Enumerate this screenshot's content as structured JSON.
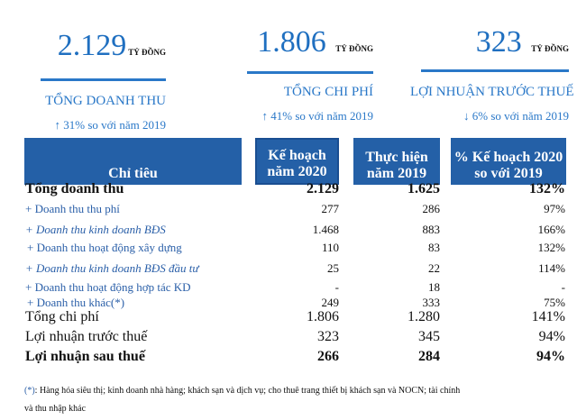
{
  "kpis": [
    {
      "value": "2.129",
      "unit": "TỶ ĐỒNG",
      "label": "TỔNG DOANH THU",
      "arrow": "↑",
      "change": "31% so với năm 2019"
    },
    {
      "value": "1.806",
      "unit": "TỶ ĐỒNG",
      "label": "TỔNG CHI PHÍ",
      "arrow": "↑",
      "change": "41% so với năm 2019"
    },
    {
      "value": "323",
      "unit": "TỶ ĐỒNG",
      "label": "LỢI NHUẬN TRƯỚC THUẾ",
      "arrow": "↓",
      "change": "6% so với năm 2019"
    }
  ],
  "table": {
    "headers": [
      "Chỉ tiêu",
      "Kế hoạch năm 2020",
      "Thực hiện năm 2019",
      "% Kế hoạch 2020 so với 2019"
    ],
    "header_lines": [
      [
        "Chỉ tiêu"
      ],
      [
        "Kế hoạch",
        "năm 2020"
      ],
      [
        "Thực hiện",
        "năm 2019"
      ],
      [
        "% Kế hoạch 2020",
        "so với 2019"
      ]
    ],
    "rows": [
      [
        "Tổng doanh thu",
        "2.129",
        "1.625",
        "132%"
      ],
      [
        "+ Doanh thu thu phí",
        "277",
        "286",
        "97%"
      ],
      [
        "+ Doanh thu kinh doanh BĐS",
        "1.468",
        "883",
        "166%"
      ],
      [
        "+ Doanh thu hoạt động xây dựng",
        "110",
        "83",
        "132%"
      ],
      [
        "+ Doanh thu kinh doanh BĐS đầu tư",
        "25",
        "22",
        "114%"
      ],
      [
        "+ Doanh thu hoạt động hợp tác KD",
        "-",
        "18",
        "-"
      ],
      [
        "+ Doanh thu khác(*)",
        "249",
        "333",
        "75%"
      ],
      [
        "Tổng chi phí",
        "1.806",
        "1.280",
        "141%"
      ],
      [
        "Lợi nhuận trước thuế",
        "323",
        "345",
        "94%"
      ],
      [
        "Lợi nhuận sau thuế",
        "266",
        "284",
        "94%"
      ]
    ]
  },
  "footnote": {
    "marker": "(*)",
    "text": ": Hàng hóa siêu thị; kinh doanh nhà hàng; khách sạn và dịch vụ; cho thuê trang thiết bị khách sạn và NOCN; tài chính",
    "text2": "và thu nhập khác"
  },
  "colors": {
    "accent": "#2a78c8",
    "header_bg": "#2460a7"
  }
}
